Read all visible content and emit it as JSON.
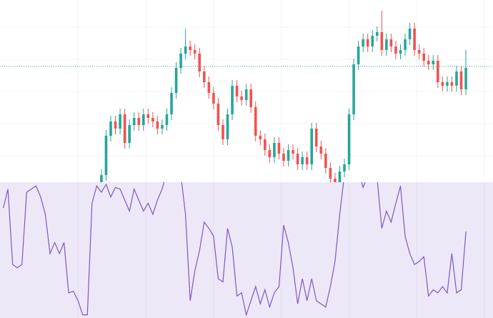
{
  "chart_data": {
    "type": "candlestick",
    "color_up": "#26a69a",
    "color_down": "#ef5350",
    "open": [
      0,
      10,
      65,
      85,
      75,
      95,
      55,
      80,
      90,
      80,
      95,
      90,
      85,
      75,
      80,
      95,
      125,
      160,
      180,
      190,
      185,
      180,
      155,
      140,
      125,
      110,
      80,
      60,
      95,
      135,
      120,
      115,
      130,
      105,
      65,
      60,
      45,
      35,
      55,
      40,
      30,
      45,
      40,
      25,
      35,
      25,
      75,
      50,
      40,
      20,
      5,
      0,
      15,
      25,
      95,
      165,
      190,
      200,
      190,
      205,
      210,
      185,
      200,
      190,
      180,
      185,
      200,
      215,
      185,
      180,
      170,
      165,
      170,
      140,
      135,
      140,
      135,
      155,
      130
    ],
    "high": [
      18,
      73,
      93,
      93,
      103,
      103,
      88,
      98,
      98,
      103,
      103,
      98,
      93,
      88,
      103,
      133,
      168,
      188,
      215,
      198,
      193,
      188,
      163,
      148,
      133,
      118,
      88,
      103,
      143,
      143,
      128,
      138,
      138,
      113,
      73,
      68,
      53,
      63,
      63,
      48,
      53,
      53,
      48,
      43,
      43,
      83,
      83,
      58,
      48,
      28,
      13,
      23,
      33,
      103,
      173,
      198,
      208,
      208,
      213,
      218,
      240,
      208,
      208,
      198,
      193,
      208,
      223,
      223,
      193,
      188,
      178,
      178,
      178,
      148,
      148,
      148,
      163,
      163,
      185
    ],
    "low": [
      -8,
      2,
      57,
      67,
      67,
      47,
      47,
      72,
      72,
      72,
      82,
      77,
      67,
      67,
      72,
      87,
      117,
      152,
      172,
      177,
      172,
      147,
      132,
      117,
      102,
      72,
      52,
      52,
      87,
      112,
      107,
      107,
      97,
      57,
      52,
      37,
      27,
      27,
      32,
      22,
      22,
      32,
      17,
      17,
      17,
      17,
      42,
      32,
      12,
      -3,
      -8,
      -8,
      7,
      17,
      87,
      157,
      182,
      182,
      182,
      197,
      177,
      177,
      182,
      172,
      172,
      177,
      192,
      177,
      172,
      162,
      157,
      157,
      132,
      127,
      127,
      127,
      127,
      122,
      122
    ],
    "close": [
      10,
      65,
      85,
      75,
      95,
      55,
      80,
      90,
      80,
      95,
      90,
      85,
      75,
      80,
      95,
      125,
      160,
      180,
      190,
      185,
      180,
      155,
      140,
      125,
      110,
      80,
      60,
      95,
      135,
      120,
      115,
      130,
      105,
      65,
      60,
      45,
      35,
      55,
      40,
      30,
      45,
      40,
      25,
      35,
      25,
      75,
      50,
      40,
      20,
      5,
      0,
      15,
      25,
      95,
      165,
      190,
      200,
      190,
      205,
      210,
      185,
      200,
      190,
      180,
      185,
      200,
      215,
      185,
      180,
      170,
      165,
      170,
      140,
      135,
      140,
      135,
      155,
      130,
      160
    ],
    "xlim": [
      -21.7,
      83.8
    ],
    "ylim": [
      0,
      255
    ],
    "xticks": [
      -5,
      9.5,
      24,
      38.5,
      53,
      67.5,
      82
    ],
    "yticks": [
      217,
      172,
      127,
      82,
      37
    ],
    "price_line": 162,
    "indicator": {
      "type": "line",
      "color": "#7e57c2",
      "ylim": [
        0,
        100
      ],
      "x": [
        -21,
        -20,
        -19,
        -18,
        -17,
        -16,
        -15,
        -14,
        -13,
        -12,
        -11,
        -10,
        -9,
        -8,
        -7,
        -6,
        -5,
        -4,
        -3,
        -2,
        -1,
        0,
        1,
        2,
        3,
        4,
        5,
        6,
        7,
        8,
        9,
        10,
        11,
        12,
        13,
        14,
        15,
        16,
        17,
        18,
        19,
        20,
        21,
        22,
        23,
        24,
        25,
        26,
        27,
        28,
        29,
        30,
        31,
        32,
        33,
        34,
        35,
        36,
        37,
        38,
        39,
        40,
        41,
        42,
        43,
        44,
        45,
        46,
        47,
        48,
        49,
        50,
        51,
        52,
        53,
        54,
        55,
        56,
        57,
        58,
        59,
        60,
        61,
        62,
        63,
        64,
        65,
        66,
        67,
        68,
        69,
        70,
        71,
        72,
        73,
        74,
        75,
        76,
        77,
        78
      ],
      "values": [
        70,
        82,
        34,
        32,
        34,
        80,
        82,
        84,
        77,
        66,
        41,
        48,
        41,
        48,
        16,
        17,
        11,
        2,
        2,
        73,
        84,
        80,
        85,
        77,
        83,
        82,
        75,
        68,
        82,
        75,
        68,
        73,
        66,
        75,
        82,
        93,
        95,
        98,
        91,
        66,
        11,
        30,
        43,
        61,
        57,
        52,
        25,
        23,
        57,
        45,
        14,
        16,
        2,
        11,
        20,
        9,
        18,
        7,
        16,
        20,
        59,
        48,
        32,
        9,
        25,
        11,
        25,
        11,
        9,
        7,
        20,
        36,
        66,
        91,
        98,
        95,
        93,
        83,
        91,
        95,
        89,
        57,
        68,
        61,
        73,
        84,
        52,
        41,
        34,
        36,
        39,
        14,
        18,
        16,
        20,
        16,
        41,
        16,
        18,
        55
      ]
    }
  }
}
